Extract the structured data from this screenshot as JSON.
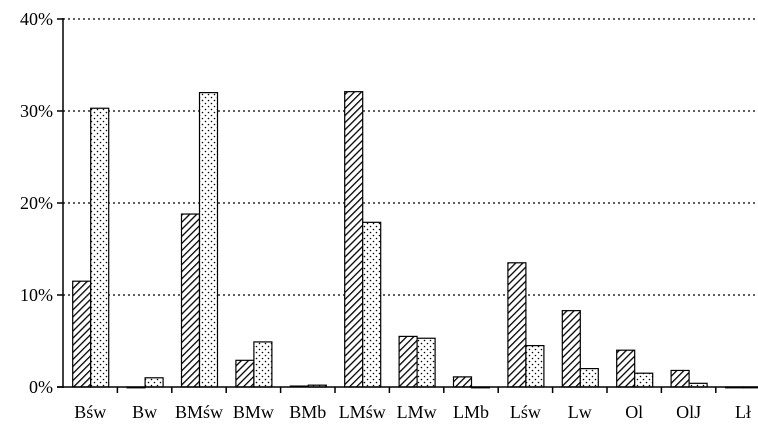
{
  "chart_data": {
    "type": "bar",
    "categories": [
      "Bśw",
      "Bw",
      "BMśw",
      "BMw",
      "BMb",
      "LMśw",
      "LMw",
      "LMb",
      "Lśw",
      "Lw",
      "Ol",
      "OlJ",
      "Lł"
    ],
    "series": [
      {
        "pattern": "diagonal-hatch-dark",
        "values": [
          11.5,
          0,
          18.8,
          2.9,
          0.1,
          32.1,
          5.5,
          1.1,
          13.5,
          8.3,
          4.0,
          1.8,
          0
        ]
      },
      {
        "pattern": "dotted-light",
        "values": [
          30.3,
          1.0,
          32.0,
          4.9,
          0.2,
          17.9,
          5.3,
          0,
          4.5,
          2.0,
          1.5,
          0.4,
          0
        ]
      }
    ],
    "ylim": [
      0,
      40
    ],
    "yticks": [
      "0%",
      "10%",
      "20%",
      "30%",
      "40%"
    ],
    "ytick_values": [
      0,
      10,
      20,
      30,
      40
    ],
    "grid": "horizontal-dotted",
    "colors": {
      "bar_stroke": "#000000",
      "hatch": "#000000",
      "background": "#ffffff"
    }
  }
}
